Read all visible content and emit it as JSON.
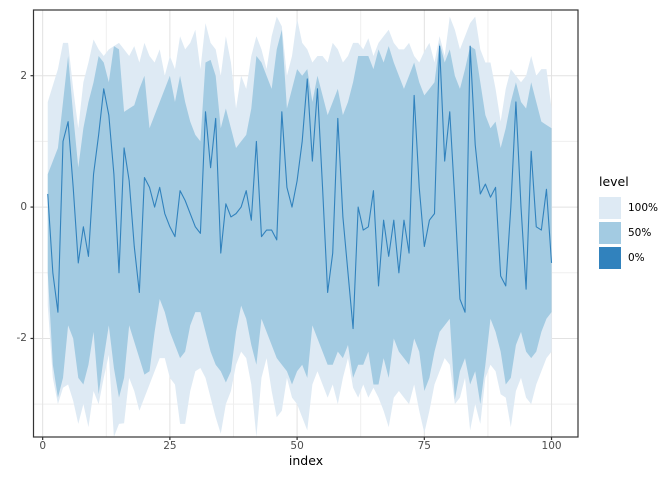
{
  "chart_data": {
    "type": "area",
    "title": "",
    "xlabel": "index",
    "ylabel": "",
    "grid": true,
    "x_axis": {
      "label": "index",
      "ticks": [
        0,
        25,
        50,
        75,
        100
      ],
      "tick_labels": [
        "0",
        "25",
        "50",
        "75",
        "100"
      ],
      "minor_ticks": [
        12.5,
        37.5,
        62.5,
        87.5
      ],
      "range": [
        -1.8,
        105.2
      ]
    },
    "y_axis": {
      "label": "",
      "ticks": [
        2,
        0,
        -2
      ],
      "tick_labels": [
        "2",
        "0",
        "-2"
      ],
      "minor_ticks": [
        3,
        1,
        -1,
        -3
      ],
      "range": [
        -3.5,
        3.0
      ]
    },
    "x_start": 1,
    "x_step": 1,
    "n_points": 100,
    "legend": {
      "title": "level",
      "position": "right",
      "entries": [
        {
          "label": "100%",
          "color": "#deeaf4"
        },
        {
          "label": "50%",
          "color": "#a3cbe2"
        },
        {
          "label": "0%",
          "color": "#3182bd"
        }
      ]
    },
    "bands": [
      {
        "level": "100%",
        "color": "#deeaf4",
        "upper": [
          1.6,
          1.85,
          2.1,
          2.5,
          2.5,
          1.8,
          1.2,
          1.9,
          2.2,
          2.55,
          2.4,
          2.3,
          2.4,
          2.45,
          2.5,
          2.4,
          2.3,
          2.45,
          2.2,
          2.5,
          2.3,
          2.2,
          2.4,
          2.0,
          2.3,
          2.1,
          2.6,
          2.4,
          2.5,
          2.7,
          2.1,
          2.8,
          2.5,
          2.4,
          2.0,
          2.6,
          2.2,
          1.5,
          2.0,
          1.8,
          2.3,
          2.6,
          2.4,
          2.1,
          2.6,
          2.9,
          2.75,
          2.0,
          2.3,
          2.87,
          2.5,
          2.4,
          2.2,
          2.3,
          2.3,
          2.2,
          2.5,
          2.4,
          2.2,
          2.3,
          2.5,
          2.5,
          2.4,
          2.57,
          2.3,
          2.5,
          2.6,
          2.7,
          2.5,
          2.4,
          2.4,
          2.5,
          2.3,
          2.2,
          2.37,
          2.5,
          2.2,
          2.6,
          2.3,
          2.9,
          2.7,
          2.4,
          2.6,
          2.8,
          2.9,
          2.4,
          2.2,
          2.2,
          1.8,
          1.3,
          1.8,
          2.1,
          2.0,
          1.9,
          2.0,
          2.3,
          2.0,
          2.1,
          2.1,
          1.5
        ],
        "lower": [
          -1.5,
          -2.6,
          -3.0,
          -2.75,
          -2.7,
          -2.95,
          -3.3,
          -3.0,
          -3.35,
          -2.8,
          -3.0,
          -2.6,
          -2.25,
          -3.5,
          -3.3,
          -3.29,
          -2.6,
          -2.8,
          -3.1,
          -2.9,
          -2.7,
          -2.5,
          -2.3,
          -2.3,
          -2.6,
          -2.7,
          -3.3,
          -3.3,
          -2.8,
          -2.5,
          -2.45,
          -2.6,
          -2.9,
          -3.2,
          -3.45,
          -3.0,
          -2.8,
          -2.4,
          -2.2,
          -2.3,
          -2.7,
          -3.5,
          -2.6,
          -2.3,
          -2.8,
          -3.2,
          -3.1,
          -2.6,
          -2.9,
          -3.0,
          -3.2,
          -3.4,
          -2.7,
          -2.5,
          -2.7,
          -2.9,
          -2.7,
          -3.0,
          -2.6,
          -2.3,
          -2.75,
          -2.9,
          -2.7,
          -2.9,
          -2.75,
          -2.9,
          -3.1,
          -3.35,
          -2.9,
          -2.8,
          -2.9,
          -3.0,
          -2.7,
          -3.1,
          -3.44,
          -3.1,
          -2.7,
          -2.5,
          -2.3,
          -2.4,
          -3.0,
          -2.9,
          -2.6,
          -3.4,
          -3.0,
          -3.3,
          -2.6,
          -2.4,
          -2.5,
          -2.85,
          -2.9,
          -3.35,
          -2.8,
          -2.6,
          -2.9,
          -3.0,
          -2.7,
          -2.5,
          -2.3,
          -2.2
        ]
      },
      {
        "level": "50%",
        "color": "#a3cbe2",
        "upper": [
          0.5,
          0.7,
          0.9,
          1.6,
          2.3,
          1.4,
          0.6,
          1.2,
          1.6,
          1.9,
          2.3,
          2.2,
          1.9,
          2.45,
          2.4,
          1.45,
          1.5,
          1.55,
          1.8,
          2.0,
          1.2,
          1.4,
          1.6,
          1.8,
          2.0,
          1.6,
          2.0,
          1.6,
          1.3,
          1.1,
          1.0,
          2.2,
          2.24,
          2.0,
          1.2,
          1.5,
          1.2,
          0.9,
          1.0,
          1.1,
          1.5,
          2.3,
          2.2,
          2.0,
          1.8,
          2.4,
          2.7,
          1.5,
          1.8,
          2.1,
          2.0,
          2.1,
          1.6,
          2.0,
          1.7,
          1.4,
          1.6,
          1.8,
          1.4,
          1.6,
          1.9,
          2.3,
          2.3,
          2.3,
          2.1,
          2.4,
          2.2,
          2.45,
          2.2,
          2.0,
          1.8,
          2.0,
          2.2,
          1.9,
          1.7,
          1.8,
          1.9,
          2.5,
          2.2,
          2.4,
          2.0,
          1.8,
          2.1,
          2.45,
          2.4,
          1.9,
          1.4,
          1.2,
          1.3,
          0.9,
          1.2,
          1.6,
          1.9,
          1.6,
          1.5,
          1.9,
          1.6,
          1.3,
          1.25,
          1.2
        ],
        "lower": [
          -1.0,
          -2.4,
          -2.9,
          -2.6,
          -1.8,
          -2.0,
          -2.6,
          -2.7,
          -2.4,
          -1.9,
          -2.85,
          -2.3,
          -1.8,
          -2.45,
          -2.9,
          -2.6,
          -1.8,
          -2.05,
          -2.3,
          -2.55,
          -2.5,
          -1.9,
          -1.4,
          -1.6,
          -1.9,
          -2.1,
          -2.3,
          -2.2,
          -1.8,
          -1.6,
          -1.6,
          -1.9,
          -2.2,
          -2.4,
          -2.5,
          -2.67,
          -2.5,
          -1.9,
          -1.5,
          -1.7,
          -2.1,
          -2.4,
          -1.7,
          -1.9,
          -2.1,
          -2.3,
          -2.4,
          -2.5,
          -2.7,
          -2.5,
          -2.4,
          -2.6,
          -1.8,
          -2.0,
          -2.2,
          -2.4,
          -2.4,
          -2.2,
          -2.3,
          -2.1,
          -2.6,
          -2.4,
          -2.4,
          -2.2,
          -2.7,
          -2.7,
          -2.3,
          -2.6,
          -2.0,
          -2.2,
          -2.3,
          -2.4,
          -2.0,
          -2.2,
          -2.8,
          -2.6,
          -2.2,
          -1.9,
          -1.8,
          -1.7,
          -2.93,
          -2.5,
          -2.3,
          -2.7,
          -2.5,
          -3.0,
          -2.4,
          -1.7,
          -1.9,
          -2.2,
          -2.7,
          -2.6,
          -2.1,
          -1.9,
          -2.2,
          -2.3,
          -2.2,
          -1.9,
          -1.7,
          -1.6
        ]
      }
    ],
    "line": {
      "level": "0%",
      "color": "#3182bd",
      "values": [
        0.2,
        -1.0,
        -1.6,
        1.0,
        1.3,
        0.3,
        -0.85,
        -0.3,
        -0.75,
        0.5,
        1.1,
        1.8,
        1.4,
        0.5,
        -1.0,
        0.9,
        0.4,
        -0.6,
        -1.3,
        0.45,
        0.3,
        0.0,
        0.3,
        -0.1,
        -0.3,
        -0.45,
        0.25,
        0.1,
        -0.1,
        -0.3,
        -0.4,
        1.45,
        0.6,
        1.35,
        -0.7,
        0.05,
        -0.15,
        -0.1,
        0.0,
        0.25,
        -0.2,
        1.0,
        -0.45,
        -0.35,
        -0.35,
        -0.5,
        1.45,
        0.3,
        0.0,
        0.4,
        1.0,
        1.95,
        0.7,
        1.8,
        0.3,
        -1.3,
        -0.7,
        1.35,
        -0.15,
        -1.0,
        -1.85,
        0.0,
        -0.35,
        -0.3,
        0.25,
        -1.2,
        -0.2,
        -0.75,
        -0.2,
        -1.0,
        -0.2,
        -0.7,
        1.7,
        0.3,
        -0.6,
        -0.2,
        -0.1,
        2.45,
        0.7,
        1.45,
        0.1,
        -1.4,
        -1.6,
        2.45,
        0.95,
        0.2,
        0.35,
        0.15,
        0.3,
        -1.05,
        -1.2,
        0.0,
        1.6,
        0.0,
        -1.25,
        0.85,
        -0.3,
        -0.35,
        0.27,
        -0.85
      ]
    },
    "colors": {
      "panel_background": "#ffffff",
      "panel_border": "#343434",
      "grid_major": "#e2e2e2",
      "grid_minor": "#efefef",
      "tick_mark": "#333333",
      "tick_label": "#4d4d4d",
      "text": "#000000"
    }
  }
}
